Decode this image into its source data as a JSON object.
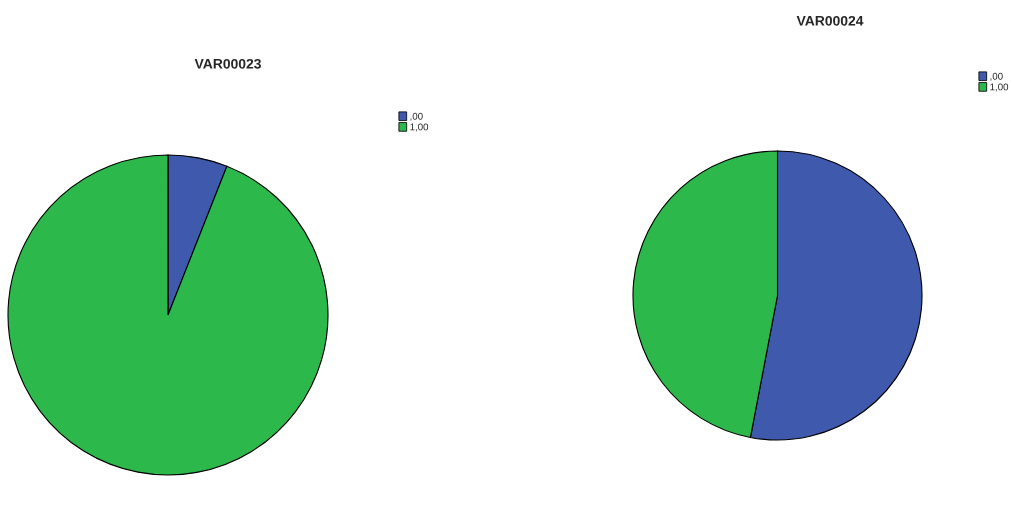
{
  "chart_data": [
    {
      "type": "pie",
      "title": "VAR00023",
      "categories": [
        ",00",
        "1,00"
      ],
      "values": [
        6,
        94
      ],
      "colors": [
        "#3f5aad",
        "#2db84b"
      ],
      "legend": "top right"
    },
    {
      "type": "pie",
      "title": "VAR00024",
      "categories": [
        ",00",
        "1,00"
      ],
      "values": [
        53,
        47
      ],
      "colors": [
        "#3f5aad",
        "#2db84b"
      ],
      "legend": "top right"
    }
  ]
}
